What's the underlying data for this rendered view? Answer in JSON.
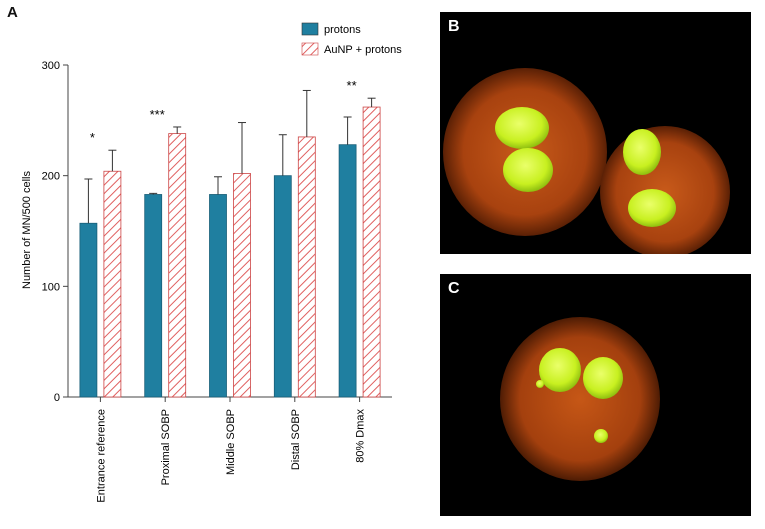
{
  "panels": {
    "a_label": "A",
    "b_label": "B",
    "c_label": "C"
  },
  "chart_data": {
    "type": "bar",
    "title": "",
    "xlabel": "",
    "ylabel": "Number of MN/500 cells",
    "ylim": [
      0,
      300
    ],
    "yticks": [
      0,
      100,
      200,
      300
    ],
    "categories": [
      "Entrance reference",
      "Proximal SOBP",
      "Middle SOBP",
      "Distal SOBP",
      "80% Dmax"
    ],
    "series": [
      {
        "name": "protons",
        "values": [
          157,
          183,
          183,
          200,
          228
        ],
        "errors": [
          40,
          1,
          16,
          37,
          25
        ]
      },
      {
        "name": "AuNP + protons",
        "values": [
          204,
          238,
          202,
          235,
          262
        ],
        "errors": [
          19,
          6,
          46,
          42,
          8
        ]
      }
    ],
    "significance": [
      "*",
      "***",
      "",
      "",
      "**"
    ],
    "legend_position": "top-right",
    "colors": {
      "protons": "#1f7fa0",
      "aunp_stripe": "#e06060",
      "aunp_bg": "#ffffff"
    }
  }
}
